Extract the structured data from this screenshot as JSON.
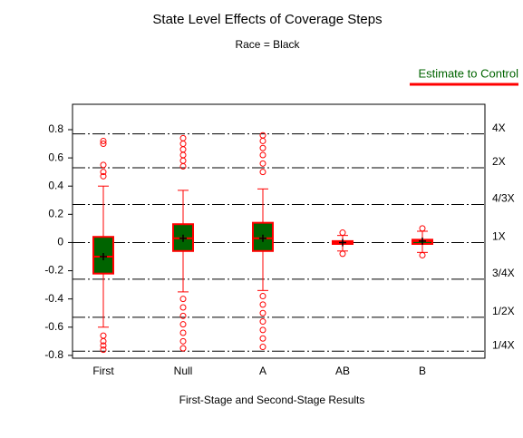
{
  "chart_data": {
    "type": "box",
    "title": "State Level Effects of Coverage Steps",
    "subtitle": "Race = Black",
    "x_label": "First-Stage and Second-Stage Results",
    "categories": [
      "First",
      "Null",
      "A",
      "AB",
      "B"
    ],
    "series": [
      {
        "name": "Estimate to Control",
        "color": "#006400",
        "edge_color": "#ff0000",
        "boxes": [
          {
            "min": -0.6,
            "q1": -0.22,
            "median": -0.1,
            "q3": 0.04,
            "max": 0.4,
            "mean": -0.1,
            "outliers": [
              0.72,
              0.7,
              0.55,
              0.5,
              0.47,
              -0.66,
              -0.7,
              -0.73,
              -0.76
            ]
          },
          {
            "min": -0.35,
            "q1": -0.06,
            "median": 0.03,
            "q3": 0.13,
            "max": 0.37,
            "mean": 0.03,
            "outliers": [
              0.74,
              0.7,
              0.66,
              0.62,
              0.58,
              0.54,
              -0.4,
              -0.46,
              -0.52,
              -0.58,
              -0.64,
              -0.7,
              -0.75
            ]
          },
          {
            "min": -0.34,
            "q1": -0.06,
            "median": 0.03,
            "q3": 0.14,
            "max": 0.38,
            "mean": 0.03,
            "outliers": [
              0.76,
              0.72,
              0.67,
              0.62,
              0.56,
              0.5,
              -0.38,
              -0.44,
              -0.5,
              -0.56,
              -0.62,
              -0.68,
              -0.74
            ]
          },
          {
            "min": -0.06,
            "q1": -0.01,
            "median": 0,
            "q3": 0.01,
            "max": 0.05,
            "mean": 0,
            "outliers": [
              0.07,
              -0.08
            ]
          },
          {
            "min": -0.07,
            "q1": -0.01,
            "median": 0.01,
            "q3": 0.02,
            "max": 0.08,
            "mean": 0.01,
            "outliers": [
              0.1,
              -0.09
            ]
          }
        ]
      }
    ],
    "ylim": [
      -0.82,
      0.98
    ],
    "yticks": [
      -0.8,
      -0.6,
      -0.4,
      -0.2,
      0,
      0.2,
      0.4,
      0.6,
      0.8
    ],
    "reference_lines": [
      {
        "value": 0.77,
        "label": "4X"
      },
      {
        "value": 0.53,
        "label": "2X"
      },
      {
        "value": 0.27,
        "label": "4/3X"
      },
      {
        "value": 0,
        "label": "1X"
      },
      {
        "value": -0.26,
        "label": "3/4X"
      },
      {
        "value": -0.53,
        "label": "1/2X"
      },
      {
        "value": -0.77,
        "label": "1/4X"
      }
    ]
  }
}
